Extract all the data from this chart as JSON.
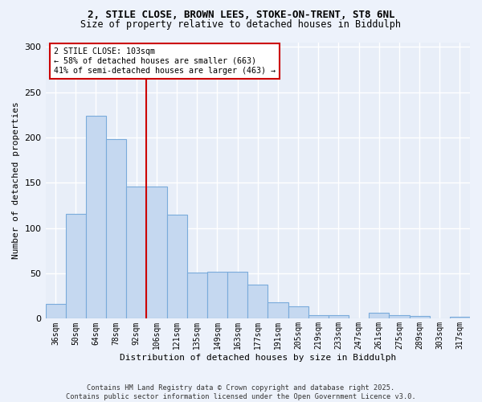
{
  "title1": "2, STILE CLOSE, BROWN LEES, STOKE-ON-TRENT, ST8 6NL",
  "title2": "Size of property relative to detached houses in Biddulph",
  "xlabel": "Distribution of detached houses by size in Biddulph",
  "ylabel": "Number of detached properties",
  "bar_values": [
    16,
    116,
    224,
    198,
    146,
    146,
    115,
    51,
    52,
    52,
    38,
    18,
    14,
    4,
    4,
    0,
    7,
    4,
    3,
    0,
    2
  ],
  "categories": [
    "36sqm",
    "50sqm",
    "64sqm",
    "78sqm",
    "92sqm",
    "106sqm",
    "121sqm",
    "135sqm",
    "149sqm",
    "163sqm",
    "177sqm",
    "191sqm",
    "205sqm",
    "219sqm",
    "233sqm",
    "247sqm",
    "261sqm",
    "275sqm",
    "289sqm",
    "303sqm",
    "317sqm"
  ],
  "bar_color": "#c5d8f0",
  "bar_edge_color": "#7aabdb",
  "bg_color": "#e8eef8",
  "fig_bg_color": "#edf2fb",
  "grid_color": "#ffffff",
  "red_line_x": 4.5,
  "annotation_text": "2 STILE CLOSE: 103sqm\n← 58% of detached houses are smaller (663)\n41% of semi-detached houses are larger (463) →",
  "annotation_box_color": "#ffffff",
  "annotation_box_edge": "#cc0000",
  "red_line_color": "#cc0000",
  "ylim": [
    0,
    305
  ],
  "yticks": [
    0,
    50,
    100,
    150,
    200,
    250,
    300
  ],
  "footer_line1": "Contains HM Land Registry data © Crown copyright and database right 2025.",
  "footer_line2": "Contains public sector information licensed under the Open Government Licence v3.0."
}
